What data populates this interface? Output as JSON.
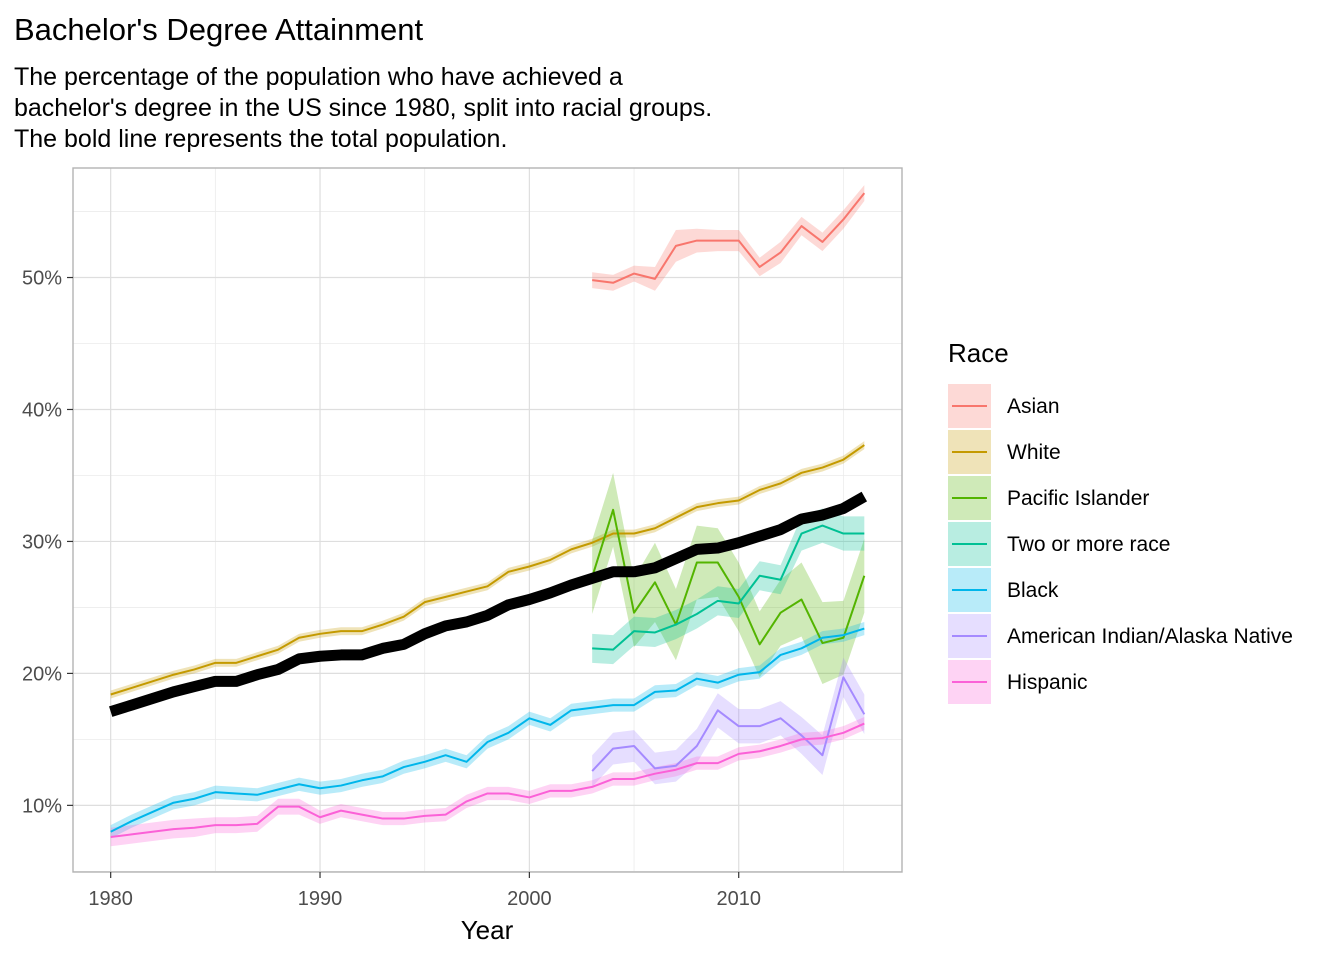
{
  "chart_data": {
    "type": "line",
    "title": "Bachelor's Degree Attainment",
    "subtitle": [
      "The percentage of the population who have achieved a",
      "bachelor's degree in the US since 1980, split into racial groups.",
      "The bold line represents the total population."
    ],
    "xlabel": "Year",
    "ylabel": "",
    "xlim": [
      1978.2,
      2017.8
    ],
    "ylim": [
      4.95,
      58.3
    ],
    "x_ticks": [
      1980,
      1990,
      2000,
      2010
    ],
    "y_ticks": [
      10,
      20,
      30,
      40,
      50
    ],
    "y_tick_labels": [
      "10%",
      "20%",
      "30%",
      "40%",
      "50%"
    ],
    "grid": true,
    "legend": {
      "title": "Race",
      "position": "right",
      "entries": [
        "Asian",
        "White",
        "Pacific Islander",
        "Two or more race",
        "Black",
        "American Indian/Alaska Native",
        "Hispanic"
      ]
    },
    "series": [
      {
        "name": "Asian",
        "color": "#F8766D",
        "x": [
          2003,
          2004,
          2005,
          2006,
          2007,
          2008,
          2009,
          2010,
          2011,
          2012,
          2013,
          2014,
          2015,
          2016
        ],
        "values": [
          49.8,
          49.6,
          50.3,
          49.9,
          52.4,
          52.8,
          52.8,
          52.8,
          50.8,
          51.9,
          53.9,
          52.7,
          54.4,
          56.4
        ],
        "ribbon": [
          0.6,
          0.6,
          0.6,
          0.9,
          1.2,
          0.9,
          0.8,
          0.8,
          0.7,
          0.8,
          0.7,
          0.7,
          0.7,
          0.6
        ]
      },
      {
        "name": "White",
        "color": "#C49A00",
        "x": [
          1980,
          1981,
          1982,
          1983,
          1984,
          1985,
          1986,
          1987,
          1988,
          1989,
          1990,
          1991,
          1992,
          1993,
          1994,
          1995,
          1996,
          1997,
          1998,
          1999,
          2000,
          2001,
          2002,
          2003,
          2004,
          2005,
          2006,
          2007,
          2008,
          2009,
          2010,
          2011,
          2012,
          2013,
          2014,
          2015,
          2016
        ],
        "values": [
          18.4,
          18.9,
          19.4,
          19.9,
          20.3,
          20.8,
          20.8,
          21.3,
          21.8,
          22.7,
          23.0,
          23.2,
          23.2,
          23.7,
          24.3,
          25.4,
          25.8,
          26.2,
          26.6,
          27.7,
          28.1,
          28.6,
          29.4,
          29.9,
          30.6,
          30.6,
          31.0,
          31.8,
          32.6,
          32.9,
          33.1,
          33.9,
          34.4,
          35.2,
          35.6,
          36.2,
          37.3
        ],
        "ribbon": [
          0.3,
          0.3,
          0.3,
          0.3,
          0.3,
          0.3,
          0.3,
          0.3,
          0.3,
          0.3,
          0.3,
          0.3,
          0.3,
          0.3,
          0.3,
          0.3,
          0.3,
          0.3,
          0.3,
          0.3,
          0.3,
          0.3,
          0.3,
          0.3,
          0.3,
          0.3,
          0.3,
          0.3,
          0.3,
          0.3,
          0.3,
          0.3,
          0.3,
          0.3,
          0.3,
          0.3,
          0.3
        ]
      },
      {
        "name": "Pacific Islander",
        "color": "#53B400",
        "x": [
          2003,
          2004,
          2005,
          2006,
          2007,
          2008,
          2009,
          2010,
          2011,
          2012,
          2013,
          2014,
          2015,
          2016
        ],
        "values": [
          27.3,
          32.4,
          24.6,
          26.9,
          23.7,
          28.4,
          28.4,
          25.8,
          22.2,
          24.6,
          25.6,
          22.3,
          22.7,
          27.4
        ],
        "ribbon": [
          2.8,
          2.8,
          2.6,
          3.0,
          2.7,
          2.8,
          2.6,
          2.6,
          2.5,
          2.5,
          2.8,
          3.1,
          2.8,
          2.8
        ]
      },
      {
        "name": "Two or more race",
        "color": "#00C094",
        "x": [
          2003,
          2004,
          2005,
          2006,
          2007,
          2008,
          2009,
          2010,
          2011,
          2012,
          2013,
          2014,
          2015,
          2016
        ],
        "values": [
          21.9,
          21.8,
          23.2,
          23.1,
          23.7,
          24.5,
          25.5,
          25.3,
          27.4,
          27.1,
          30.6,
          31.2,
          30.6,
          30.6
        ],
        "ribbon": [
          1.1,
          1.1,
          1.1,
          1.1,
          1.1,
          1.1,
          1.1,
          1.1,
          1.1,
          1.1,
          1.3,
          1.3,
          1.3,
          1.3
        ]
      },
      {
        "name": "Black",
        "color": "#00B6EB",
        "x": [
          1980,
          1981,
          1982,
          1983,
          1984,
          1985,
          1986,
          1987,
          1988,
          1989,
          1990,
          1991,
          1992,
          1993,
          1994,
          1995,
          1996,
          1997,
          1998,
          1999,
          2000,
          2001,
          2002,
          2003,
          2004,
          2005,
          2006,
          2007,
          2008,
          2009,
          2010,
          2011,
          2012,
          2013,
          2014,
          2015,
          2016
        ],
        "values": [
          8.0,
          8.8,
          9.5,
          10.2,
          10.5,
          11.0,
          10.9,
          10.8,
          11.2,
          11.6,
          11.3,
          11.5,
          11.9,
          12.2,
          12.9,
          13.3,
          13.8,
          13.3,
          14.8,
          15.5,
          16.6,
          16.1,
          17.2,
          17.4,
          17.6,
          17.6,
          18.6,
          18.7,
          19.6,
          19.3,
          19.9,
          20.1,
          21.4,
          21.9,
          22.7,
          22.9,
          23.4
        ],
        "ribbon": [
          0.5,
          0.5,
          0.5,
          0.5,
          0.5,
          0.5,
          0.5,
          0.5,
          0.5,
          0.5,
          0.5,
          0.5,
          0.5,
          0.5,
          0.5,
          0.5,
          0.5,
          0.5,
          0.5,
          0.5,
          0.5,
          0.5,
          0.5,
          0.5,
          0.5,
          0.5,
          0.5,
          0.5,
          0.5,
          0.5,
          0.5,
          0.5,
          0.5,
          0.5,
          0.5,
          0.5,
          0.5
        ]
      },
      {
        "name": "American Indian/Alaska Native",
        "color": "#A58AFF",
        "x": [
          2003,
          2004,
          2005,
          2006,
          2007,
          2008,
          2009,
          2010,
          2011,
          2012,
          2013,
          2014,
          2015,
          2016
        ],
        "values": [
          12.6,
          14.3,
          14.5,
          12.8,
          13.0,
          14.5,
          17.2,
          16.0,
          16.0,
          16.6,
          15.3,
          13.8,
          19.7,
          16.9
        ],
        "ribbon": [
          1.2,
          1.2,
          1.2,
          1.2,
          1.2,
          1.3,
          1.3,
          1.3,
          1.3,
          1.3,
          1.4,
          1.5,
          1.5,
          1.5
        ]
      },
      {
        "name": "Hispanic",
        "color": "#FB61D7",
        "x": [
          1980,
          1981,
          1982,
          1983,
          1984,
          1985,
          1986,
          1987,
          1988,
          1989,
          1990,
          1991,
          1992,
          1993,
          1994,
          1995,
          1996,
          1997,
          1998,
          1999,
          2000,
          2001,
          2002,
          2003,
          2004,
          2005,
          2006,
          2007,
          2008,
          2009,
          2010,
          2011,
          2012,
          2013,
          2014,
          2015,
          2016
        ],
        "values": [
          7.6,
          7.8,
          8.0,
          8.2,
          8.3,
          8.5,
          8.5,
          8.6,
          9.9,
          9.9,
          9.1,
          9.6,
          9.3,
          9.0,
          9.0,
          9.2,
          9.3,
          10.3,
          10.9,
          10.9,
          10.6,
          11.1,
          11.1,
          11.4,
          12.0,
          12.0,
          12.4,
          12.7,
          13.2,
          13.2,
          13.9,
          14.1,
          14.5,
          15.0,
          15.1,
          15.5,
          16.2
        ],
        "ribbon": [
          0.7,
          0.7,
          0.7,
          0.7,
          0.7,
          0.6,
          0.6,
          0.6,
          0.6,
          0.6,
          0.5,
          0.5,
          0.5,
          0.5,
          0.5,
          0.5,
          0.5,
          0.5,
          0.5,
          0.5,
          0.5,
          0.5,
          0.5,
          0.5,
          0.5,
          0.5,
          0.5,
          0.5,
          0.5,
          0.5,
          0.5,
          0.5,
          0.5,
          0.5,
          0.5,
          0.5,
          0.5
        ]
      },
      {
        "name": "",
        "color": "#000000",
        "x": [
          1980,
          1981,
          1982,
          1983,
          1984,
          1985,
          1986,
          1987,
          1988,
          1989,
          1990,
          1991,
          1992,
          1993,
          1994,
          1995,
          1996,
          1997,
          1998,
          1999,
          2000,
          2001,
          2002,
          2003,
          2004,
          2005,
          2006,
          2007,
          2008,
          2009,
          2010,
          2011,
          2012,
          2013,
          2014,
          2015,
          2016
        ],
        "values": [
          17.1,
          17.6,
          18.1,
          18.6,
          19.0,
          19.4,
          19.4,
          19.9,
          20.3,
          21.1,
          21.3,
          21.4,
          21.4,
          21.9,
          22.2,
          23.0,
          23.6,
          23.9,
          24.4,
          25.2,
          25.6,
          26.1,
          26.7,
          27.2,
          27.7,
          27.7,
          28.0,
          28.7,
          29.4,
          29.5,
          29.9,
          30.4,
          30.9,
          31.7,
          32.0,
          32.5,
          33.4
        ],
        "bold": true
      }
    ]
  }
}
